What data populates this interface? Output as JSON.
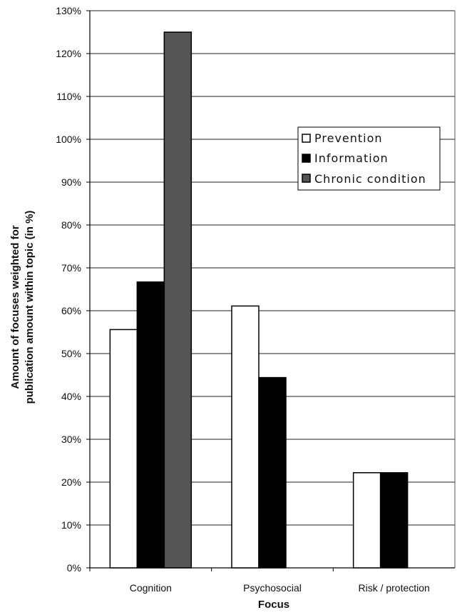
{
  "chart_data": {
    "type": "bar",
    "categories": [
      "Cognition",
      "Psychosocial",
      "Risk / protection"
    ],
    "series": [
      {
        "name": "Prevention",
        "values": [
          55.6,
          61.1,
          22.2
        ],
        "color": "#ffffff"
      },
      {
        "name": "Information",
        "values": [
          66.7,
          44.4,
          22.2
        ],
        "color": "#000000"
      },
      {
        "name": "Chronic condition",
        "values": [
          125.0,
          0,
          0
        ],
        "color": "#555555"
      }
    ],
    "xlabel": "Focus",
    "ylabel_lines": [
      "Amount of focuses weighted for",
      "publication amount within topic (in %)"
    ],
    "ylim": [
      0,
      130
    ],
    "yticks": [
      "0%",
      "10%",
      "20%",
      "30%",
      "40%",
      "50%",
      "60%",
      "70%",
      "80%",
      "90%",
      "100%",
      "110%",
      "120%",
      "130%"
    ],
    "grid": true,
    "legend_position": "right-upper-inside"
  }
}
